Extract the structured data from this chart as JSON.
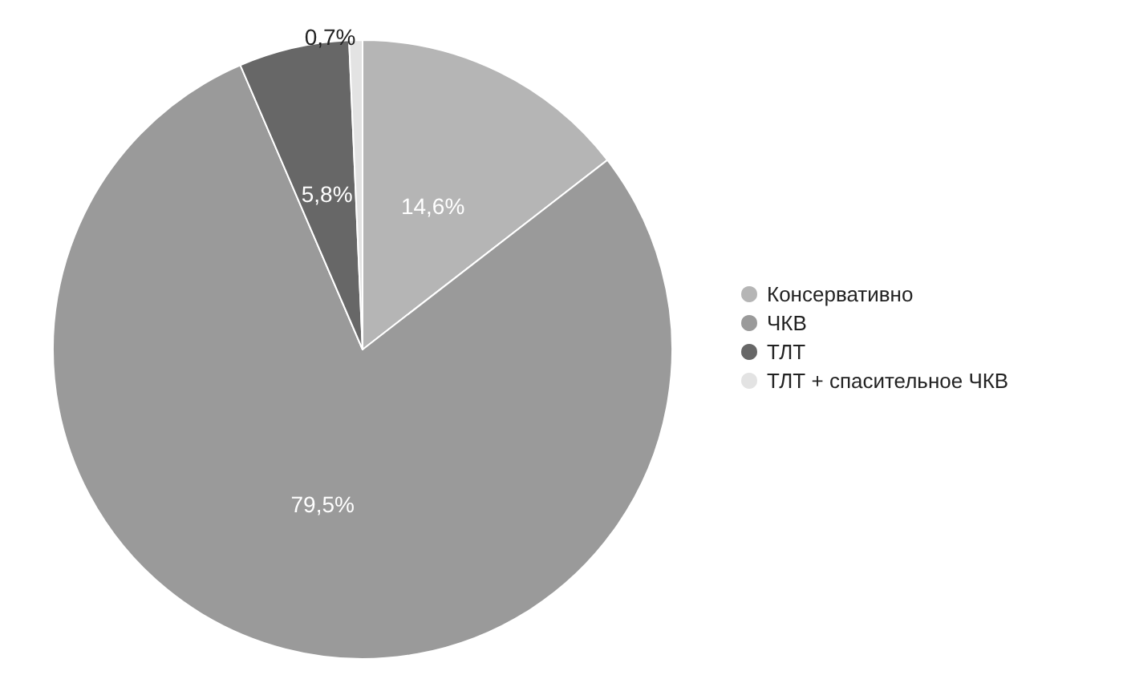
{
  "chart_data": {
    "type": "pie",
    "categories": [
      "Консервативно",
      "ЧКВ",
      "ТЛТ",
      "ТЛТ + спасительное ЧКВ"
    ],
    "values": [
      14.6,
      79.5,
      5.8,
      0.7
    ],
    "value_labels": [
      "14,6%",
      "79,5%",
      "5,8%",
      "0,7%"
    ],
    "colors": [
      "#b5b5b5",
      "#9a9a9a",
      "#676767",
      "#e3e3e3"
    ],
    "legend": "right"
  }
}
